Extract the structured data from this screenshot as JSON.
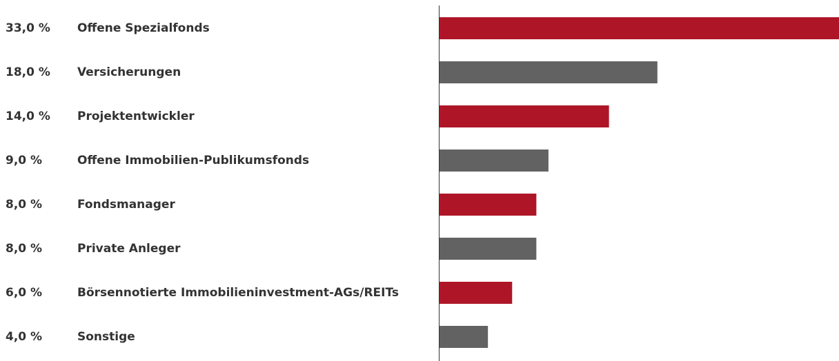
{
  "chart_data": {
    "type": "bar",
    "orientation": "horizontal",
    "categories": [
      "Offene Spezialfonds",
      "Versicherungen",
      "Projektentwickler",
      "Offene Immobilien-Publikumsfonds",
      "Fondsmanager",
      "Private Anleger",
      "Börsennotierte Immobilieninvestment-AGs/REITs",
      "Sonstige"
    ],
    "values": [
      33,
      18,
      14,
      9,
      8,
      8,
      6,
      4
    ],
    "value_labels": [
      "33,0 %",
      "18,0 %",
      "14,0 %",
      "9,0 %",
      "8,0 %",
      "8,0 %",
      "6,0 %",
      "4,0 %"
    ],
    "colors": [
      "#ae1628",
      "#626262",
      "#ae1628",
      "#626262",
      "#ae1628",
      "#626262",
      "#ae1628",
      "#626262"
    ]
  }
}
